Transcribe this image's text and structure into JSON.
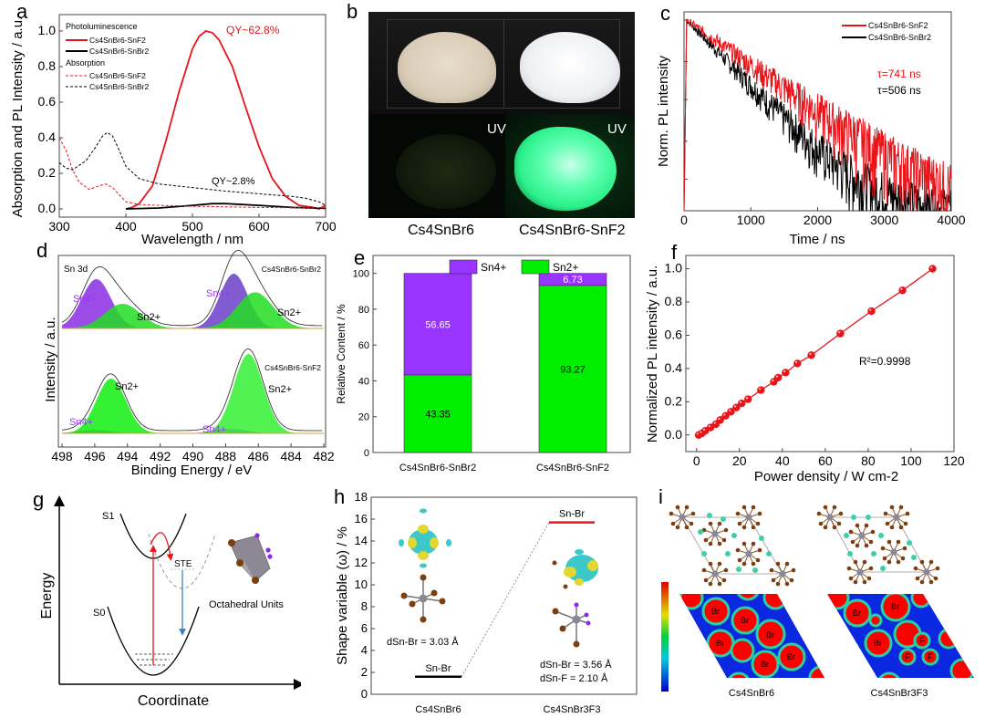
{
  "panels": {
    "a": "a",
    "b": "b",
    "c": "c",
    "d": "d",
    "e": "e",
    "f": "f",
    "g": "g",
    "h": "h",
    "i": "i"
  },
  "colors": {
    "red": "#e8141a",
    "black": "#000000",
    "purple": "#8a2be2",
    "green": "#00ee00",
    "blue_line": "#3b7fc4"
  },
  "chart_data": [
    {
      "id": "a",
      "type": "line",
      "xlabel": "Wavelength / nm",
      "ylabel": "Absorption and PL Intensity / a.u.",
      "xlim": [
        300,
        700
      ],
      "ylim": [
        -0.02,
        1.1
      ],
      "xticks": [
        "300",
        "400",
        "500",
        "600",
        "700"
      ],
      "yticks": [
        "0.0",
        "0.2",
        "0.4",
        "0.6",
        "0.8",
        "1.0"
      ],
      "legend": {
        "placement": "top-left",
        "group1": "Photoluminescence",
        "group2": "Absorption",
        "entries": [
          "Cs4SnBr6-SnF2",
          "Cs4SnBr6-SnBr2",
          "Cs4SnBr6-SnF2",
          "Cs4SnBr6-SnBr2"
        ]
      },
      "annotations": [
        "QY~62.8%",
        "QY~2.8%"
      ],
      "series": [
        {
          "name": "PL Cs4SnBr6-SnF2",
          "style": "solid",
          "color": "#e8141a",
          "x": [
            400,
            410,
            420,
            440,
            460,
            480,
            500,
            510,
            520,
            530,
            540,
            560,
            580,
            600,
            620,
            640,
            660,
            680,
            690,
            700
          ],
          "y": [
            0.0,
            0.01,
            0.03,
            0.13,
            0.38,
            0.66,
            0.9,
            0.97,
            1.0,
            0.99,
            0.95,
            0.8,
            0.57,
            0.35,
            0.17,
            0.07,
            0.02,
            0.01,
            0.0,
            0.02
          ]
        },
        {
          "name": "PL Cs4SnBr6-SnBr2",
          "style": "solid",
          "color": "#000000",
          "x": [
            400,
            450,
            500,
            530,
            550,
            600,
            650,
            700
          ],
          "y": [
            0.0,
            0.005,
            0.02,
            0.03,
            0.03,
            0.02,
            0.008,
            0.003
          ]
        },
        {
          "name": "Abs Cs4SnBr6-SnF2",
          "style": "dashed",
          "color": "#e8141a",
          "x": [
            300,
            310,
            320,
            330,
            345,
            360,
            370,
            380,
            390,
            400,
            420,
            450,
            500,
            600,
            700
          ],
          "y": [
            0.4,
            0.33,
            0.22,
            0.15,
            0.11,
            0.13,
            0.14,
            0.12,
            0.08,
            0.04,
            0.025,
            0.02,
            0.015,
            0.008,
            0.005
          ]
        },
        {
          "name": "Abs Cs4SnBr6-SnBr2",
          "style": "dashed",
          "color": "#000000",
          "x": [
            300,
            310,
            320,
            340,
            355,
            365,
            372,
            380,
            390,
            400,
            420,
            450,
            500,
            550,
            600,
            650,
            670,
            690,
            700
          ],
          "y": [
            0.26,
            0.23,
            0.22,
            0.27,
            0.35,
            0.41,
            0.43,
            0.41,
            0.33,
            0.24,
            0.17,
            0.14,
            0.12,
            0.1,
            0.085,
            0.07,
            0.06,
            0.04,
            0.02
          ]
        }
      ]
    },
    {
      "id": "c",
      "type": "line",
      "xlabel": "Time / ns",
      "ylabel": "Norm. PL intensity",
      "xlim": [
        0,
        4000
      ],
      "yscale": "log",
      "xticks": [
        "0",
        "1000",
        "2000",
        "3000",
        "4000"
      ],
      "legend": {
        "placement": "top-right",
        "entries": [
          "Cs4SnBr6-SnF2",
          "Cs4SnBr6-SnBr2"
        ]
      },
      "annotations": [
        "τ=741 ns",
        "τ=506 ns"
      ],
      "series": [
        {
          "name": "Cs4SnBr6-SnF2",
          "color": "#e8141a",
          "tau_ns": 741
        },
        {
          "name": "Cs4SnBr6-SnBr2",
          "color": "#000000",
          "tau_ns": 506
        }
      ]
    },
    {
      "id": "d",
      "type": "area",
      "xlabel": "Binding Energy / eV",
      "ylabel": "Intensity / a.u.",
      "xlim": [
        498,
        482
      ],
      "xticks": [
        "498",
        "496",
        "494",
        "492",
        "490",
        "488",
        "486",
        "484",
        "482"
      ],
      "inner_title": "Sn 3d",
      "samples": [
        {
          "name": "Cs4SnBr6-SnBr2",
          "peaks": [
            {
              "label": "Sn4+",
              "center": 495.9,
              "amp": 0.9,
              "width": 0.9,
              "color": "#8a2be2"
            },
            {
              "label": "Sn2+",
              "center": 494.3,
              "amp": 0.45,
              "width": 1.1,
              "color": "#22dd22"
            },
            {
              "label": "Sn4+",
              "center": 487.5,
              "amp": 1.0,
              "width": 0.85,
              "color": "#6a3fc8"
            },
            {
              "label": "Sn2+",
              "center": 486.2,
              "amp": 0.66,
              "width": 1.1,
              "color": "#22dd22"
            }
          ]
        },
        {
          "name": "Cs4SnBr6-SnF2",
          "peaks": [
            {
              "label": "Sn4+",
              "center": 496.0,
              "amp": 0.06,
              "width": 1.0,
              "color": "#8a2be2"
            },
            {
              "label": "Sn2+",
              "center": 495.0,
              "amp": 1.0,
              "width": 0.9,
              "color": "#11ee11"
            },
            {
              "label": "Sn4+",
              "center": 487.7,
              "amp": 0.08,
              "width": 1.0,
              "color": "#8a2be2"
            },
            {
              "label": "Sn2+",
              "center": 486.6,
              "amp": 1.45,
              "width": 0.9,
              "color": "#33f033"
            }
          ]
        }
      ],
      "peak_labels": [
        "Sn4+",
        "Sn2+",
        "Sn4+",
        "Sn2+",
        "Sn2+",
        "Sn4+",
        "Sn4+",
        "Sn2+"
      ]
    },
    {
      "id": "e",
      "type": "bar",
      "stacked": true,
      "ylabel": "Relative Content / %",
      "ylim": [
        0,
        110
      ],
      "yticks": [
        "0",
        "20",
        "40",
        "60",
        "80",
        "100"
      ],
      "categories": [
        "Cs4SnBr6-SnBr2",
        "Cs4SnBr6-SnF2"
      ],
      "legend": {
        "placement": "top",
        "entries": [
          "Sn4+",
          "Sn2+"
        ]
      },
      "series": [
        {
          "name": "Sn2+",
          "color": "#00ee00",
          "values": [
            43.35,
            93.27
          ],
          "labels": [
            "43.35",
            "93.27"
          ]
        },
        {
          "name": "Sn4+",
          "color": "#9933ff",
          "values": [
            56.65,
            6.73
          ],
          "labels": [
            "56.65",
            "6.73"
          ]
        }
      ]
    },
    {
      "id": "f",
      "type": "scatter",
      "xlabel": "Power density / W cm-2",
      "ylabel": "Normalized PL intensity / a.u.",
      "xlim": [
        -5,
        120
      ],
      "ylim": [
        -0.1,
        1.08
      ],
      "xticks": [
        "0",
        "20",
        "40",
        "60",
        "80",
        "100",
        "120"
      ],
      "yticks": [
        "0.0",
        "0.2",
        "0.4",
        "0.6",
        "0.8",
        "1.0"
      ],
      "annotation": "R²=0.9998",
      "color": "#e8141a",
      "x": [
        1,
        2.5,
        4,
        6.5,
        9,
        11,
        13.5,
        16,
        18.5,
        21,
        24,
        30,
        36,
        38,
        41.5,
        47,
        53.5,
        67,
        81.5,
        96,
        110
      ],
      "y": [
        0.0,
        0.01,
        0.025,
        0.045,
        0.065,
        0.09,
        0.115,
        0.14,
        0.165,
        0.19,
        0.215,
        0.27,
        0.32,
        0.345,
        0.375,
        0.43,
        0.48,
        0.61,
        0.745,
        0.87,
        1.0
      ]
    },
    {
      "id": "h",
      "type": "bar",
      "ylabel": "Shape variable (ω) / %",
      "ylim": [
        0,
        18
      ],
      "yticks": [
        "0",
        "2",
        "4",
        "6",
        "8",
        "10",
        "12",
        "14",
        "16",
        "18"
      ],
      "categories": [
        "Cs4SnBr6",
        "Cs4SnBr3F3"
      ],
      "values": [
        1.6,
        15.7
      ],
      "level_labels": [
        "Sn-Br",
        "Sn-Br"
      ],
      "level_colors": [
        "#000000",
        "#e8141a"
      ],
      "annotations": [
        "dSn-Br = 3.03 Å",
        "dSn-Br = 3.56 Å",
        "dSn-F = 2.10 Å"
      ]
    }
  ],
  "panel_b": {
    "uv_labels": [
      "UV",
      "UV"
    ],
    "captions": [
      "Cs4SnBr6",
      "Cs4SnBr6-SnF2"
    ]
  },
  "panel_g": {
    "xlabel": "Coordinate",
    "ylabel": "Energy",
    "states": [
      "S1",
      "S0"
    ],
    "ste_label": "STE",
    "octahedron_label": "Octahedral Units"
  },
  "panel_i": {
    "captions": [
      "Cs4SnBr6",
      "Cs4SnBr3F3"
    ],
    "map_labels_left": [
      "Br",
      "Br",
      "Br",
      "Br",
      "Br",
      "Br"
    ],
    "map_labels_right": [
      "Br",
      "Br",
      "Br",
      "F",
      "F",
      "F"
    ]
  }
}
